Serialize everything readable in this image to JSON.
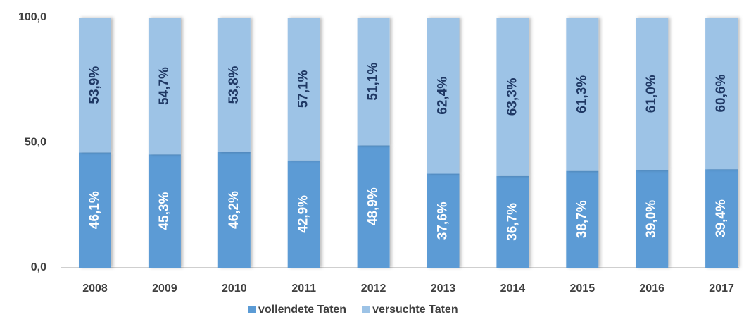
{
  "chart_data": {
    "type": "stacked_bar",
    "categories": [
      "2008",
      "2009",
      "2010",
      "2011",
      "2012",
      "2013",
      "2014",
      "2015",
      "2016",
      "2017"
    ],
    "series": [
      {
        "name": "vollendete Taten",
        "color": "#5b9bd5",
        "values": [
          46.1,
          45.3,
          46.2,
          42.9,
          48.9,
          37.6,
          36.7,
          38.7,
          39.0,
          39.4
        ],
        "value_labels": [
          "46,1%",
          "45,3%",
          "46,2%",
          "42,9%",
          "48,9%",
          "37,6%",
          "36,7%",
          "38,7%",
          "39,0%",
          "39,4%"
        ]
      },
      {
        "name": "versuchte Taten",
        "color": "#9dc3e6",
        "values": [
          53.9,
          54.7,
          53.8,
          57.1,
          51.1,
          62.4,
          63.3,
          61.3,
          61.0,
          60.6
        ],
        "value_labels": [
          "53,9%",
          "54,7%",
          "53,8%",
          "57,1%",
          "51,1%",
          "62,4%",
          "63,3%",
          "61,3%",
          "61,0%",
          "60,6%"
        ]
      }
    ],
    "ylim": [
      0,
      100
    ],
    "yticks": [
      {
        "value": 0,
        "label": "0,0"
      },
      {
        "value": 50,
        "label": "50,0"
      },
      {
        "value": 100,
        "label": "100,0"
      }
    ],
    "grid": false,
    "legend": "bottom"
  }
}
